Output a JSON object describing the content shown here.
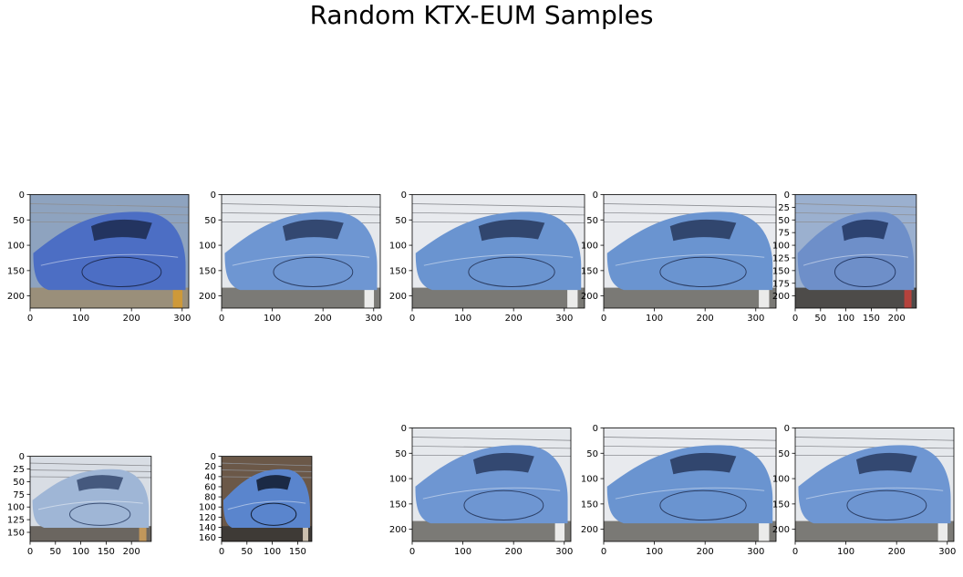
{
  "chart_data": {
    "type": "image-grid",
    "title": "Random KTX-EUM Samples",
    "rows": 2,
    "cols": 5,
    "panels": [
      {
        "row": 0,
        "col": 0,
        "xlim": [
          0,
          313
        ],
        "ylim": [
          224,
          0
        ],
        "xticks": [
          0,
          100,
          200,
          300
        ],
        "yticks": [
          0,
          50,
          100,
          150,
          200
        ],
        "subject": "blue high-speed train front, platform with yellow line",
        "colors": {
          "sky": "#8ea3bf",
          "body": "#4c6ec4",
          "dark": "#1f2d55",
          "ground": "#9a8f7a",
          "accent": "#d79b2e"
        }
      },
      {
        "row": 0,
        "col": 1,
        "xlim": [
          0,
          313
        ],
        "ylim": [
          224,
          0
        ],
        "xticks": [
          0,
          100,
          200,
          300
        ],
        "yticks": [
          0,
          50,
          100,
          150,
          200
        ],
        "subject": "blue high-speed train, overcast sky, gravel track",
        "colors": {
          "sky": "#e5e8ec",
          "body": "#6e96d2",
          "dark": "#2c3f66",
          "ground": "#7b7a76",
          "accent": "#ffffff"
        }
      },
      {
        "row": 0,
        "col": 2,
        "xlim": [
          0,
          340
        ],
        "ylim": [
          224,
          0
        ],
        "xticks": [
          0,
          100,
          200,
          300
        ],
        "yticks": [
          0,
          50,
          100,
          150,
          200
        ],
        "subject": "blue high-speed train, catenary wires, gravel track",
        "colors": {
          "sky": "#e8eaee",
          "body": "#6a94d0",
          "dark": "#2b3d63",
          "ground": "#7a7975",
          "accent": "#ffffff"
        }
      },
      {
        "row": 0,
        "col": 3,
        "xlim": [
          0,
          340
        ],
        "ylim": [
          224,
          0
        ],
        "xticks": [
          0,
          100,
          200,
          300
        ],
        "yticks": [
          0,
          50,
          100,
          150,
          200
        ],
        "subject": "blue high-speed train, catenary wires, gravel track",
        "colors": {
          "sky": "#e8eaee",
          "body": "#6a94d0",
          "dark": "#2b3d63",
          "ground": "#7a7975",
          "accent": "#ffffff"
        }
      },
      {
        "row": 0,
        "col": 4,
        "xlim": [
          0,
          239
        ],
        "ylim": [
          224,
          0
        ],
        "xticks": [
          0,
          50,
          100,
          150,
          200
        ],
        "yticks": [
          0,
          25,
          50,
          75,
          100,
          125,
          150,
          175,
          200
        ],
        "subject": "close-up blue train nose with KTX logo",
        "colors": {
          "sky": "#9bb0cf",
          "body": "#6e8fc9",
          "dark": "#263b67",
          "ground": "#4d4b49",
          "accent": "#c8413a"
        }
      },
      {
        "row": 1,
        "col": 0,
        "xlim": [
          0,
          239
        ],
        "ylim": [
          168,
          0
        ],
        "xticks": [
          0,
          50,
          100,
          150,
          200
        ],
        "yticks": [
          0,
          25,
          50,
          75,
          100,
          125,
          150
        ],
        "subject": "silver-blue train at station platform",
        "colors": {
          "sky": "#d8dde4",
          "body": "#9fb6d6",
          "dark": "#3b4f74",
          "ground": "#6b6660",
          "accent": "#d0a05a"
        }
      },
      {
        "row": 1,
        "col": 1,
        "xlim": [
          0,
          178
        ],
        "ylim": [
          168,
          0
        ],
        "xticks": [
          0,
          50,
          100,
          150
        ],
        "yticks": [
          0,
          20,
          40,
          60,
          80,
          100,
          120,
          140,
          160
        ],
        "subject": "dark blue train head-on at night platform",
        "colors": {
          "sky": "#6b5848",
          "body": "#5a85cd",
          "dark": "#142036",
          "ground": "#3e3a36",
          "accent": "#e4d7c4"
        }
      },
      {
        "row": 1,
        "col": 2,
        "xlim": [
          0,
          313
        ],
        "ylim": [
          224,
          0
        ],
        "xticks": [
          0,
          100,
          200,
          300
        ],
        "yticks": [
          0,
          50,
          100,
          150,
          200
        ],
        "subject": "blue high-speed train, overcast sky, gravel track",
        "colors": {
          "sky": "#e5e8ec",
          "body": "#6e96d2",
          "dark": "#2c3f66",
          "ground": "#7b7a76",
          "accent": "#ffffff"
        }
      },
      {
        "row": 1,
        "col": 3,
        "xlim": [
          0,
          340
        ],
        "ylim": [
          224,
          0
        ],
        "xticks": [
          0,
          100,
          200,
          300
        ],
        "yticks": [
          0,
          50,
          100,
          150,
          200
        ],
        "subject": "blue high-speed train, catenary wires, gravel track",
        "colors": {
          "sky": "#e8eaee",
          "body": "#6a94d0",
          "dark": "#2b3d63",
          "ground": "#7a7975",
          "accent": "#ffffff"
        }
      },
      {
        "row": 1,
        "col": 4,
        "xlim": [
          0,
          313
        ],
        "ylim": [
          224,
          0
        ],
        "xticks": [
          0,
          100,
          200,
          300
        ],
        "yticks": [
          0,
          50,
          100,
          150,
          200
        ],
        "subject": "blue high-speed train, overcast sky, gravel track",
        "colors": {
          "sky": "#e5e8ec",
          "body": "#6e96d2",
          "dark": "#2c3f66",
          "ground": "#7b7a76",
          "accent": "#ffffff"
        }
      }
    ]
  }
}
